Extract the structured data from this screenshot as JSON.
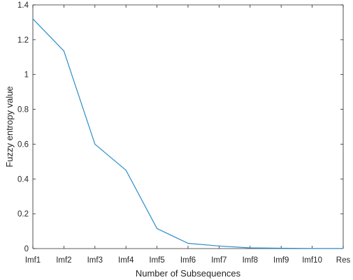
{
  "chart_data": {
    "type": "line",
    "xlabel": "Number of Subsequences",
    "ylabel": "Fuzzy entropy value",
    "categories": [
      "Imf1",
      "Imf2",
      "Imf3",
      "Imf4",
      "Imf5",
      "Imf6",
      "Imf7",
      "Imf8",
      "Imf9",
      "Imf10",
      "Res"
    ],
    "series": [
      {
        "values": [
          1.32,
          1.135,
          0.6,
          0.45,
          0.115,
          0.03,
          0.015,
          0.004,
          0.002,
          0.001,
          0.001
        ]
      }
    ],
    "ylim": [
      0,
      1.4
    ],
    "yticks": [
      0,
      0.2,
      0.4,
      0.6,
      0.8,
      1,
      1.2,
      1.4
    ],
    "grid": false,
    "box": true,
    "line_color": "#2b8ec8"
  }
}
